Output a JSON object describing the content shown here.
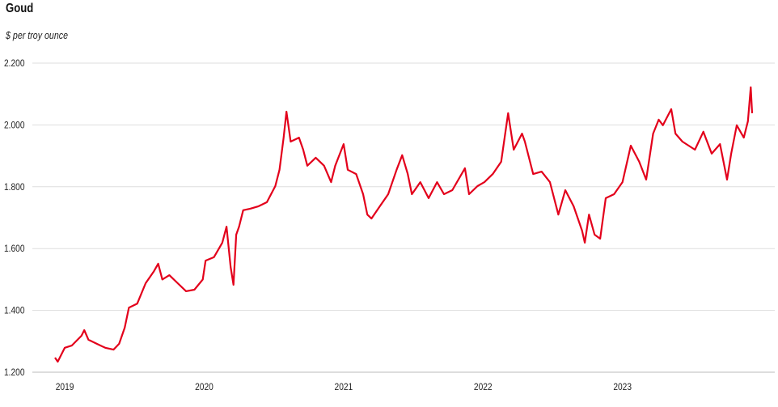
{
  "chart_data": {
    "type": "line",
    "title": "Goud",
    "subtitle": "$ per troy ounce",
    "xlabel": "",
    "ylabel": "$ per troy ounce",
    "ylim": [
      1200,
      2200
    ],
    "xlim": [
      2018.93,
      2023.93
    ],
    "grid": true,
    "y_ticks": [
      1200,
      1400,
      1600,
      1800,
      2000,
      2200
    ],
    "y_tick_labels": [
      "1.200",
      "1.400",
      "1.600",
      "1.800",
      "2.000",
      "2.200"
    ],
    "x_ticks": [
      2019,
      2020,
      2021,
      2022,
      2023
    ],
    "x_tick_labels": [
      "2019",
      "2020",
      "2021",
      "2022",
      "2023"
    ],
    "series": [
      {
        "name": "Goud",
        "color": "#e3001b",
        "x": [
          2018.93,
          2018.95,
          2019.0,
          2019.05,
          2019.12,
          2019.14,
          2019.17,
          2019.23,
          2019.29,
          2019.35,
          2019.39,
          2019.43,
          2019.46,
          2019.52,
          2019.58,
          2019.64,
          2019.67,
          2019.7,
          2019.75,
          2019.81,
          2019.87,
          2019.93,
          2019.99,
          2020.01,
          2020.07,
          2020.13,
          2020.16,
          2020.19,
          2020.21,
          2020.23,
          2020.25,
          2020.28,
          2020.33,
          2020.39,
          2020.45,
          2020.51,
          2020.54,
          2020.57,
          2020.59,
          2020.62,
          2020.68,
          2020.71,
          2020.74,
          2020.8,
          2020.86,
          2020.91,
          2020.94,
          2021.0,
          2021.03,
          2021.09,
          2021.14,
          2021.17,
          2021.2,
          2021.26,
          2021.32,
          2021.38,
          2021.42,
          2021.46,
          2021.49,
          2021.55,
          2021.61,
          2021.67,
          2021.72,
          2021.78,
          2021.87,
          2021.9,
          2021.96,
          2022.01,
          2022.07,
          2022.13,
          2022.18,
          2022.22,
          2022.28,
          2022.3,
          2022.36,
          2022.42,
          2022.48,
          2022.54,
          2022.59,
          2022.65,
          2022.71,
          2022.73,
          2022.76,
          2022.8,
          2022.84,
          2022.88,
          2022.94,
          2023.0,
          2023.06,
          2023.12,
          2023.17,
          2023.22,
          2023.26,
          2023.29,
          2023.35,
          2023.38,
          2023.43,
          2023.52,
          2023.58,
          2023.64,
          2023.7,
          2023.75,
          2023.78,
          2023.82,
          2023.87,
          2023.9,
          2023.92,
          2023.93
        ],
        "values": [
          1247,
          1234,
          1279,
          1286,
          1318,
          1336,
          1305,
          1292,
          1279,
          1273,
          1292,
          1344,
          1409,
          1422,
          1488,
          1527,
          1551,
          1500,
          1514,
          1488,
          1462,
          1467,
          1500,
          1561,
          1572,
          1619,
          1671,
          1540,
          1483,
          1645,
          1671,
          1724,
          1729,
          1737,
          1750,
          1802,
          1855,
          1959,
          2043,
          1946,
          1959,
          1920,
          1868,
          1894,
          1868,
          1815,
          1868,
          1938,
          1855,
          1841,
          1776,
          1710,
          1697,
          1737,
          1776,
          1855,
          1902,
          1841,
          1776,
          1815,
          1763,
          1815,
          1776,
          1789,
          1860,
          1776,
          1802,
          1815,
          1841,
          1881,
          2038,
          1920,
          1972,
          1946,
          1841,
          1849,
          1815,
          1710,
          1789,
          1737,
          1658,
          1619,
          1710,
          1645,
          1632,
          1763,
          1776,
          1815,
          1933,
          1881,
          1823,
          1972,
          2017,
          1999,
          2051,
          1972,
          1946,
          1920,
          1978,
          1907,
          1938,
          1823,
          1907,
          1999,
          1959,
          2012,
          2122,
          2038
        ]
      }
    ]
  }
}
